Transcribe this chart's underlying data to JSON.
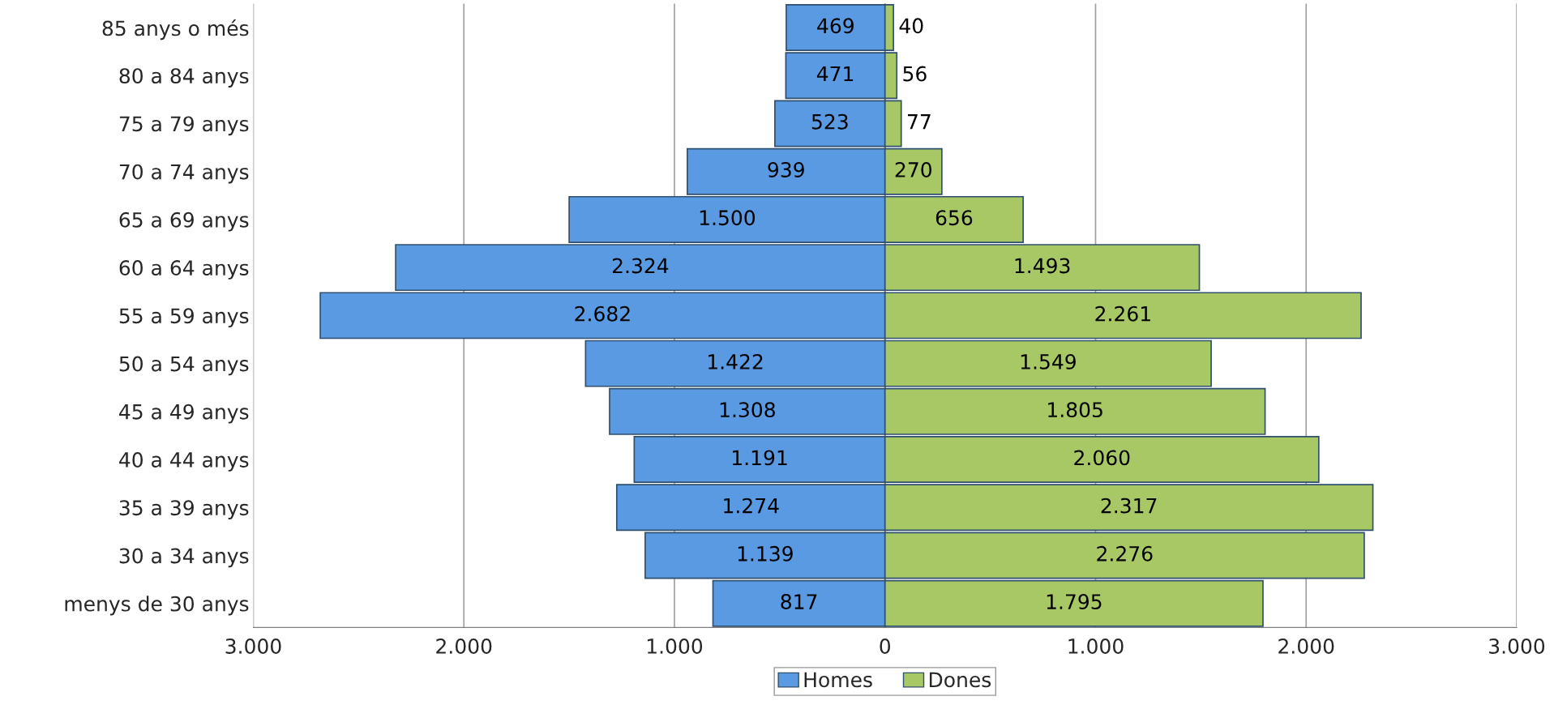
{
  "chart_data": {
    "type": "bar",
    "orientation": "horizontal",
    "categories": [
      "85 anys o més",
      "80 a 84 anys",
      "75 a 79 anys",
      "70 a 74 anys",
      "65 a 69 anys",
      "60 a 64 anys",
      "55 a 59 anys",
      "50 a 54 anys",
      "45 a 49 anys",
      "40 a 44 anys",
      "35 a 39 anys",
      "30 a 34 anys",
      "menys de 30 anys"
    ],
    "series": [
      {
        "name": "Homes",
        "color": "#5a9ae2",
        "values": [
          469,
          471,
          523,
          939,
          1500,
          2324,
          2682,
          1422,
          1308,
          1191,
          1274,
          1139,
          817
        ],
        "base": [
          -469,
          -471,
          -523,
          -939,
          -1500,
          -2324,
          -2682,
          -1422,
          -1308,
          -1191,
          -1274,
          -1139,
          -817
        ],
        "value_labels": [
          "469",
          "471",
          "523",
          "939",
          "1.500",
          "2.324",
          "2.682",
          "1.422",
          "1.308",
          "1.191",
          "1.274",
          "1.139",
          "817"
        ]
      },
      {
        "name": "Dones",
        "color": "#a8c866",
        "values": [
          40,
          56,
          77,
          270,
          656,
          1493,
          2261,
          1549,
          1805,
          2060,
          2317,
          2276,
          1795
        ],
        "value_labels": [
          "40",
          "56",
          "77",
          "270",
          "656",
          "1.493",
          "2.261",
          "1.549",
          "1.805",
          "2.060",
          "2.317",
          "2.276",
          "1.795"
        ]
      }
    ],
    "xlim": [
      -3000,
      3000
    ],
    "xticks": [
      {
        "value": -3000,
        "label": "3.000"
      },
      {
        "value": -2000,
        "label": "2.000"
      },
      {
        "value": -1000,
        "label": "1.000"
      },
      0,
      {
        "value": 1000,
        "label": "1.000"
      },
      {
        "value": 2000,
        "label": "2.000"
      },
      {
        "value": 3000,
        "label": "3.000"
      }
    ],
    "grid": "x",
    "legend": "bottom"
  }
}
